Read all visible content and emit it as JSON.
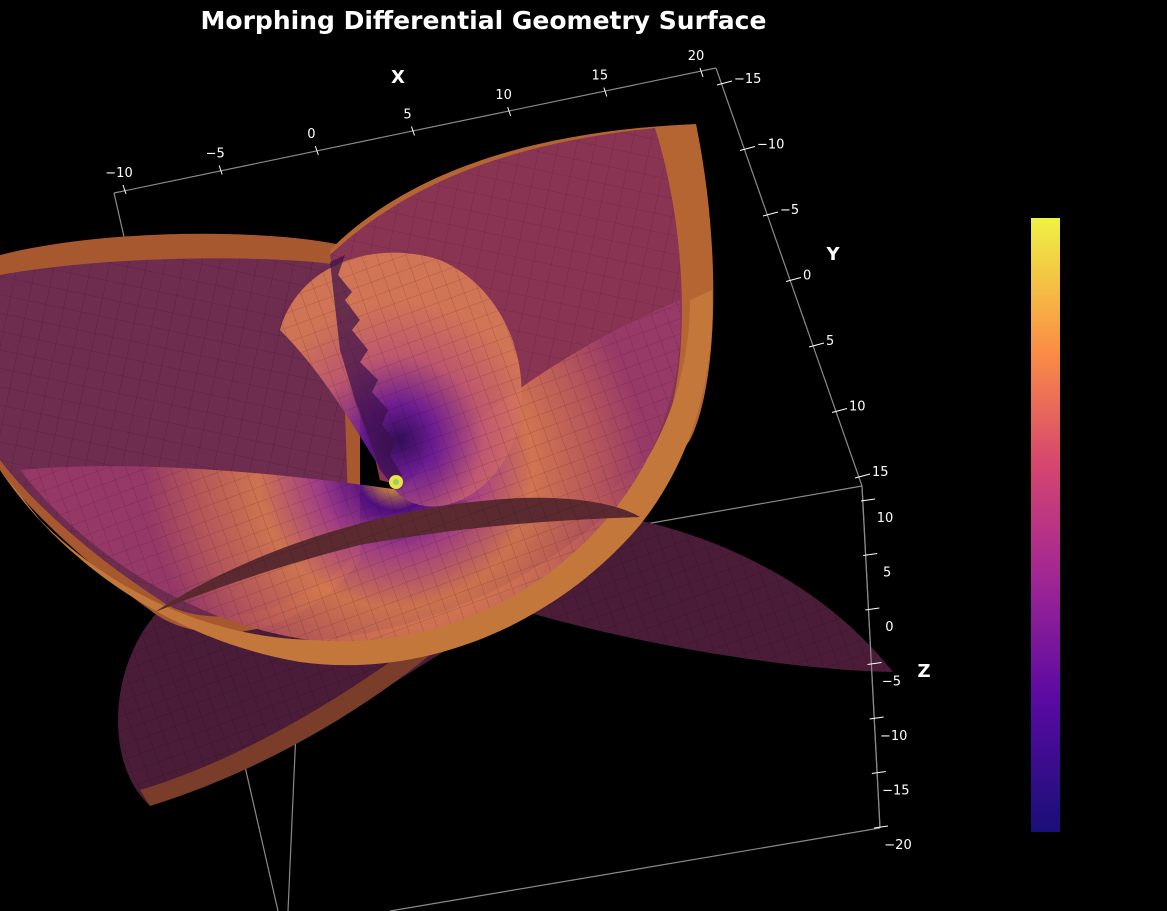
{
  "title": "Morphing Differential Geometry Surface",
  "chart_data": {
    "type": "surface",
    "title": "Morphing Differential Geometry Surface",
    "background": "#000000",
    "colormap": "plasma",
    "colormap_stops": [
      "#0d0887",
      "#6a00a8",
      "#b12a90",
      "#e16462",
      "#fca636",
      "#f0f921"
    ],
    "axes": {
      "x": {
        "label": "X",
        "ticks": [
          "−10",
          "−5",
          "0",
          "5",
          "10",
          "15",
          "20"
        ],
        "range": [
          -10,
          20
        ]
      },
      "y": {
        "label": "Y",
        "ticks": [
          "−15",
          "−10",
          "−5",
          "0",
          "5",
          "10",
          "15"
        ],
        "range": [
          -15,
          15
        ]
      },
      "z": {
        "label": "Z",
        "ticks": [
          "10",
          "5",
          "0",
          "−5",
          "−10",
          "−15",
          "−20"
        ],
        "range": [
          -20,
          12
        ]
      }
    },
    "colorbar": {
      "visible": true,
      "tick_labels": false
    },
    "grid": false
  }
}
